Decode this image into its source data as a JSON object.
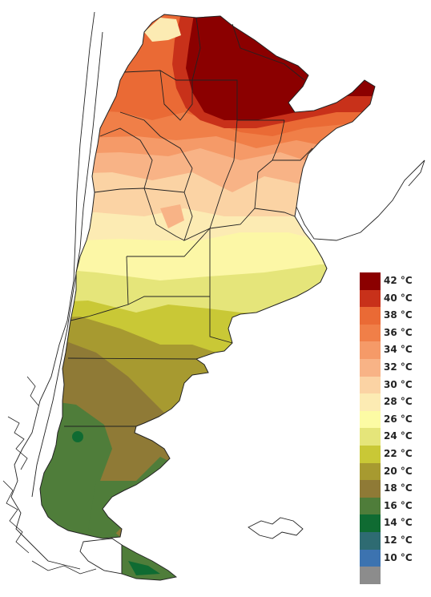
{
  "legend": {
    "items": [
      {
        "label": "42 °C",
        "color": "#8b0000"
      },
      {
        "label": "40 °C",
        "color": "#c8311a"
      },
      {
        "label": "38 °C",
        "color": "#ea6a35"
      },
      {
        "label": "36 °C",
        "color": "#f07f48"
      },
      {
        "label": "34 °C",
        "color": "#f59a68"
      },
      {
        "label": "32 °C",
        "color": "#f8b386"
      },
      {
        "label": "30 °C",
        "color": "#fbd3a4"
      },
      {
        "label": "28 °C",
        "color": "#fcebb3"
      },
      {
        "label": "26 °C",
        "color": "#fcfba4"
      },
      {
        "label": "24 °C",
        "color": "#e5e57a"
      },
      {
        "label": "22 °C",
        "color": "#c9c836"
      },
      {
        "label": "20 °C",
        "color": "#a79a30"
      },
      {
        "label": "18 °C",
        "color": "#8f7a36"
      },
      {
        "label": "16 °C",
        "color": "#4f7d3a"
      },
      {
        "label": "14 °C",
        "color": "#0f6b32"
      },
      {
        "label": "12 °C",
        "color": "#2e6b72"
      },
      {
        "label": "10 °C",
        "color": "#3c73b0"
      },
      {
        "label": "",
        "color": "#8c8c8c"
      }
    ]
  }
}
